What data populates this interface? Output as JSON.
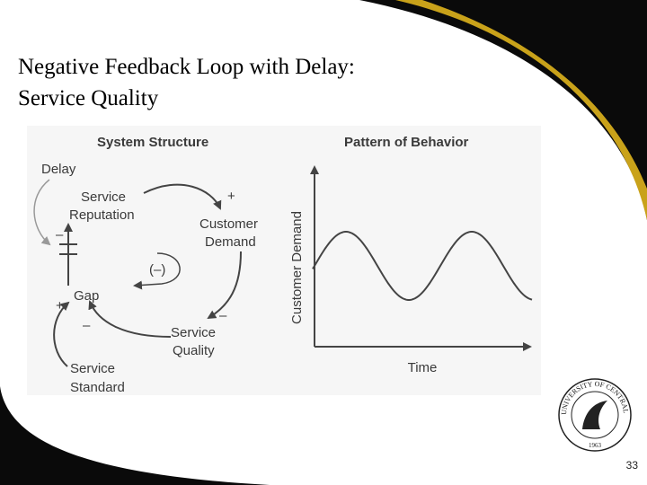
{
  "title": {
    "lines": [
      "Negative Feedback Loop with Delay:",
      "Service Quality"
    ]
  },
  "structure": {
    "heading": "System Structure",
    "nodes": [
      {
        "label": [
          "Delay"
        ]
      },
      {
        "label": [
          "Service",
          "Reputation"
        ]
      },
      {
        "label": [
          "Customer",
          "Demand"
        ]
      },
      {
        "label": [
          "Gap"
        ]
      },
      {
        "label": [
          "Service",
          "Quality"
        ]
      },
      {
        "label": [
          "Service",
          "Standard"
        ]
      }
    ],
    "loop_label": "(–)",
    "signs": [
      "+",
      "–",
      "–",
      "+",
      "–"
    ]
  },
  "behavior": {
    "heading": "Pattern of Behavior",
    "y_label": "Customer Demand",
    "x_label": "Time"
  },
  "logo": {
    "text": "UNIVERSITY OF CENTRAL FLORIDA",
    "year": "1963"
  },
  "page_number": "33"
}
